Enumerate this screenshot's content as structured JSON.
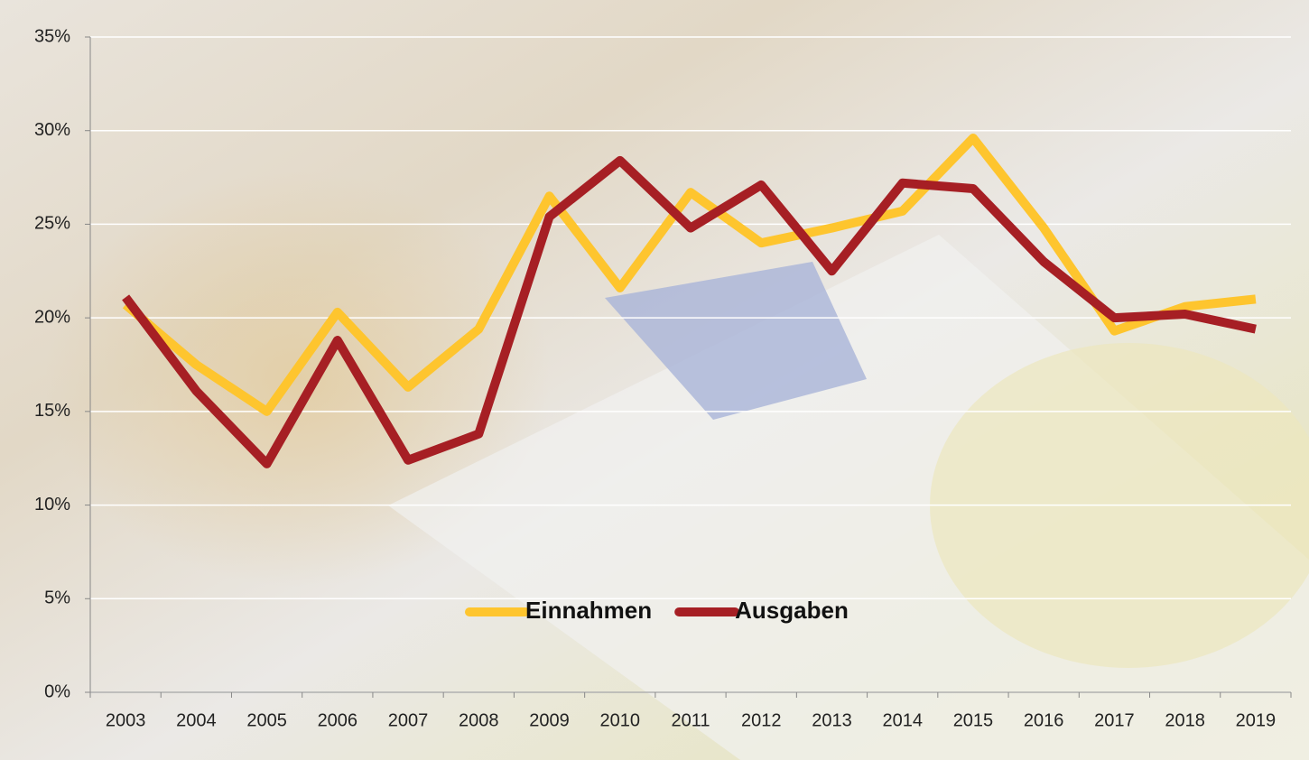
{
  "chart_data": {
    "type": "line",
    "categories": [
      "2003",
      "2004",
      "2005",
      "2006",
      "2007",
      "2008",
      "2009",
      "2010",
      "2011",
      "2012",
      "2013",
      "2014",
      "2015",
      "2016",
      "2017",
      "2018",
      "2019"
    ],
    "series": [
      {
        "name": "Einnahmen",
        "color": "#fec52e",
        "values": [
          20.7,
          17.5,
          15.0,
          20.3,
          16.3,
          19.4,
          26.5,
          21.6,
          26.7,
          24.0,
          24.8,
          25.7,
          29.6,
          24.8,
          19.3,
          20.6,
          21.0
        ]
      },
      {
        "name": "Ausgaben",
        "color": "#a61f24",
        "values": [
          21.1,
          16.1,
          12.2,
          18.8,
          12.4,
          13.8,
          25.4,
          28.4,
          24.8,
          27.1,
          22.5,
          27.2,
          26.9,
          23.0,
          20.0,
          20.2,
          19.4
        ]
      }
    ],
    "ylim": [
      0,
      35
    ],
    "yticks": [
      {
        "value": 0,
        "label": "0%"
      },
      {
        "value": 5,
        "label": "5%"
      },
      {
        "value": 10,
        "label": "10%"
      },
      {
        "value": 15,
        "label": "15%"
      },
      {
        "value": 20,
        "label": "20%"
      },
      {
        "value": 25,
        "label": "25%"
      },
      {
        "value": 30,
        "label": "30%"
      },
      {
        "value": 35,
        "label": "35%"
      }
    ],
    "grid": true
  }
}
